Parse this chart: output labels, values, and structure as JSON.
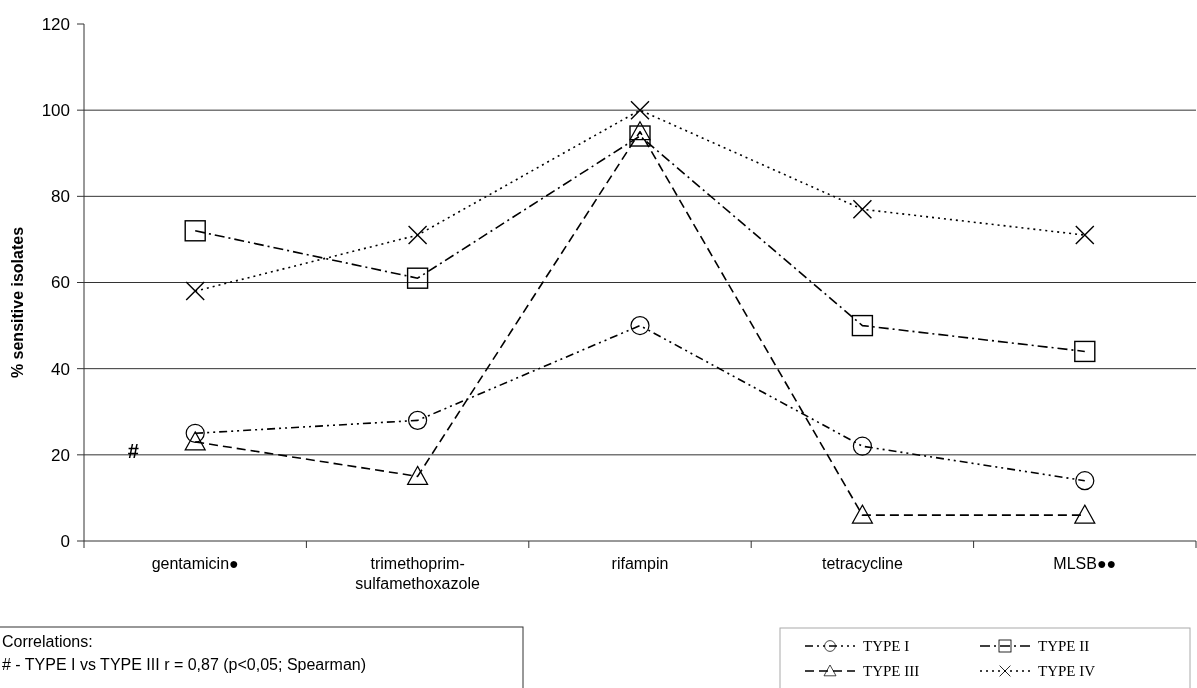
{
  "chart_data": {
    "type": "line",
    "ylabel": "% sensitive isolates",
    "categories": [
      "gentamicin●",
      "trimethoprim-sulfamethoxazole",
      "rifampin",
      "tetracycline",
      "MLSB●●"
    ],
    "series": [
      {
        "name": "TYPE I",
        "color": "#000000",
        "marker": "circle",
        "line_style": "dashdotdot",
        "values": [
          25,
          28,
          50,
          22,
          14
        ]
      },
      {
        "name": "TYPE II",
        "color": "#000000",
        "marker": "square",
        "line_style": "dashdot",
        "values": [
          72,
          61,
          94,
          50,
          44
        ]
      },
      {
        "name": "TYPE III",
        "color": "#000000",
        "marker": "triangle",
        "line_style": "dashed",
        "values": [
          23,
          15,
          95,
          6,
          6
        ]
      },
      {
        "name": "TYPE IV",
        "color": "#000000",
        "marker": "cross",
        "line_style": "dotted",
        "values": [
          58,
          71,
          100,
          77,
          71
        ]
      }
    ],
    "ylim": [
      0,
      120
    ],
    "yticks": [
      0,
      20,
      40,
      60,
      80,
      100,
      120
    ],
    "grid": "y",
    "legend": "bottom right",
    "annotations": [
      {
        "text": "#",
        "x": "gentamicin●",
        "y": 21
      },
      "Correlations:",
      "# - TYPE I vs TYPE III  r = 0,87 (p<0,05; Spearman)"
    ]
  }
}
